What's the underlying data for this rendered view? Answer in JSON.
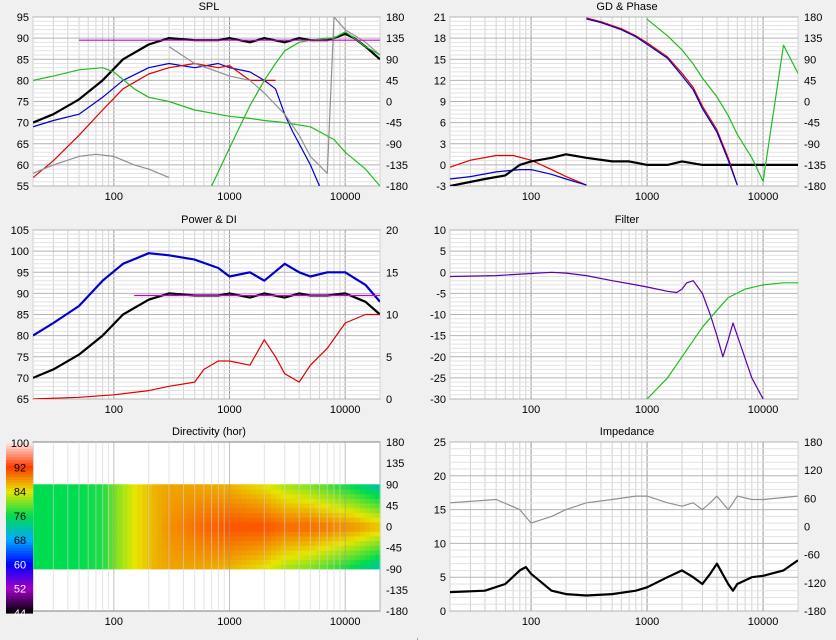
{
  "window_title": "",
  "colors": {
    "background": "#f0f0f0",
    "plot_bg": "#ffffff",
    "grid": "#c8c8c8",
    "grid_major": "#9a9a9a",
    "black": "#000000",
    "blue": "#0000cc",
    "red": "#e00000",
    "green": "#22bb22",
    "gray": "#909090",
    "magenta": "#cc00cc",
    "purple": "#5a00aa"
  },
  "panels": [
    {
      "id": "spl",
      "title": "SPL"
    },
    {
      "id": "gd",
      "title": "GD & Phase"
    },
    {
      "id": "power",
      "title": "Power & DI"
    },
    {
      "id": "filter",
      "title": "Filter"
    },
    {
      "id": "directivity",
      "title": "Directivity (hor)"
    },
    {
      "id": "impedance",
      "title": "Impedance"
    }
  ],
  "x_ticks": [
    "100",
    "1000",
    "10000"
  ],
  "chart_data": [
    {
      "id": "spl",
      "type": "line",
      "title": "SPL",
      "xscale": "log",
      "xlim": [
        20,
        20000
      ],
      "y_left_ticks": [
        "95",
        "90",
        "85",
        "80",
        "75",
        "70",
        "65",
        "60",
        "55"
      ],
      "ylim_left": [
        55,
        95
      ],
      "y_right_ticks": [
        "180",
        "135",
        "90",
        "45",
        "0",
        "-45",
        "-90",
        "-135",
        "-180"
      ],
      "ylim_right": [
        -180,
        180
      ],
      "series": [
        {
          "color": "black",
          "axis": "left",
          "x": [
            20,
            30,
            50,
            80,
            120,
            200,
            300,
            500,
            800,
            1000,
            1500,
            2000,
            3000,
            4000,
            5000,
            7000,
            8000,
            10000,
            12000,
            15000,
            20000
          ],
          "y": [
            70,
            72,
            75.5,
            80,
            85,
            88.5,
            90,
            89.5,
            89.5,
            90,
            89,
            90,
            89,
            90,
            89.5,
            89.5,
            90,
            91,
            90,
            88,
            85
          ]
        },
        {
          "color": "blue",
          "axis": "left",
          "x": [
            20,
            30,
            50,
            80,
            120,
            200,
            300,
            500,
            800,
            1000,
            1500,
            2000,
            2500,
            3000,
            3500,
            4000,
            5000,
            6000
          ],
          "y": [
            69,
            70.5,
            72,
            76,
            80,
            83,
            84,
            83,
            84,
            83,
            82,
            80,
            78,
            72,
            68,
            65,
            60,
            55
          ]
        },
        {
          "color": "red",
          "axis": "left",
          "x": [
            20,
            30,
            50,
            80,
            120,
            200,
            300,
            500,
            800,
            1000,
            1500,
            2000,
            2500
          ],
          "y": [
            57,
            61,
            67,
            73,
            78,
            81.5,
            83,
            84,
            83,
            83.5,
            80,
            80,
            80
          ]
        },
        {
          "color": "green",
          "axis": "left",
          "x": [
            20,
            30,
            50,
            80,
            100,
            150,
            200,
            300,
            500,
            1000,
            1500,
            2000,
            3000,
            5000,
            8000,
            10000,
            15000,
            20000
          ],
          "y": [
            80,
            81,
            82.5,
            83,
            82,
            78,
            76,
            75,
            73,
            71.5,
            71,
            70.5,
            70,
            69,
            66,
            63,
            59,
            55
          ]
        },
        {
          "color": "gray",
          "axis": "left",
          "x": [
            20,
            30,
            50,
            70,
            100,
            150,
            200,
            300
          ],
          "y": [
            58,
            60,
            62,
            62.5,
            62,
            60,
            59,
            57
          ]
        },
        {
          "color": "gray",
          "axis": "left",
          "x": [
            300,
            500,
            800,
            1000,
            1500,
            2000,
            3000,
            4000,
            5000,
            7000,
            8000,
            10000,
            15000,
            20000
          ],
          "y": [
            88,
            84,
            82,
            81,
            80,
            77,
            72,
            67,
            62,
            58,
            95,
            92,
            89,
            86
          ]
        },
        {
          "color": "green",
          "axis": "left",
          "x": [
            700,
            1000,
            1500,
            2000,
            2500,
            3000,
            4000,
            5000,
            7000,
            8000,
            10000,
            12000,
            15000,
            20000
          ],
          "y": [
            55,
            64,
            74,
            80,
            84,
            87,
            89,
            89.5,
            90,
            90,
            91.5,
            90,
            88,
            86
          ]
        },
        {
          "color": "magenta",
          "axis": "left",
          "x": [
            50,
            20000
          ],
          "y": [
            89.5,
            89.5
          ]
        }
      ]
    },
    {
      "id": "gd",
      "type": "line",
      "title": "GD & Phase",
      "xscale": "log",
      "xlim": [
        20,
        20000
      ],
      "y_left_ticks": [
        "21",
        "18",
        "15",
        "12",
        "9",
        "6",
        "3",
        "0",
        "-3"
      ],
      "ylim_left": [
        -3,
        21
      ],
      "y_right_ticks": [
        "180",
        "135",
        "90",
        "45",
        "0",
        "-45",
        "-90",
        "-135",
        "-180"
      ],
      "ylim_right": [
        -180,
        180
      ],
      "series": [
        {
          "color": "red",
          "axis": "right",
          "x": [
            20,
            30,
            50,
            70,
            100,
            150,
            200,
            300
          ],
          "y": [
            -140,
            -125,
            -115,
            -115,
            -125,
            -145,
            -160,
            -178
          ]
        },
        {
          "color": "blue",
          "axis": "right",
          "x": [
            20,
            30,
            50,
            80,
            100,
            150,
            200,
            300
          ],
          "y": [
            -165,
            -160,
            -150,
            -145,
            -145,
            -155,
            -165,
            -178
          ]
        },
        {
          "color": "black",
          "axis": "left",
          "x": [
            20,
            40,
            60,
            80,
            100,
            150,
            200,
            300,
            500,
            700,
            1000,
            1500,
            2000,
            3000,
            5000,
            10000,
            20000
          ],
          "y": [
            -3,
            -2,
            -1.5,
            0,
            0.5,
            1,
            1.5,
            1,
            0.5,
            0.5,
            0,
            0,
            0.5,
            0,
            0,
            0,
            0
          ]
        },
        {
          "color": "red",
          "axis": "right",
          "x": [
            300,
            400,
            600,
            800,
            1000,
            1500,
            2000,
            2500,
            3000,
            4000,
            5000,
            6000
          ],
          "y": [
            178,
            170,
            155,
            140,
            125,
            95,
            60,
            30,
            -10,
            -60,
            -120,
            -178
          ]
        },
        {
          "color": "blue",
          "axis": "right",
          "x": [
            300,
            400,
            600,
            800,
            1000,
            1500,
            2000,
            2500,
            3000,
            4000,
            5000,
            6000
          ],
          "y": [
            176,
            168,
            153,
            138,
            122,
            92,
            55,
            25,
            -15,
            -65,
            -125,
            -178
          ]
        },
        {
          "color": "green",
          "axis": "right",
          "x": [
            1000,
            1500,
            2000,
            2500,
            3000,
            4000,
            5000,
            6000,
            8000,
            10000,
            15000,
            20000
          ],
          "y": [
            175,
            140,
            110,
            80,
            50,
            10,
            -30,
            -70,
            -120,
            -170,
            120,
            60
          ]
        }
      ]
    },
    {
      "id": "power",
      "type": "line",
      "title": "Power & DI",
      "xscale": "log",
      "xlim": [
        20,
        20000
      ],
      "y_left_ticks": [
        "105",
        "100",
        "95",
        "90",
        "85",
        "80",
        "75",
        "70",
        "65"
      ],
      "ylim_left": [
        65,
        105
      ],
      "y_right_ticks": [
        "20",
        "15",
        "10",
        "5",
        "0"
      ],
      "ylim_right": [
        0,
        20
      ],
      "series": [
        {
          "color": "blue",
          "axis": "left",
          "x": [
            20,
            30,
            50,
            80,
            120,
            200,
            300,
            500,
            800,
            1000,
            1500,
            2000,
            3000,
            4000,
            5000,
            7000,
            10000,
            15000,
            20000
          ],
          "y": [
            80,
            83,
            87,
            93,
            97,
            99.5,
            99,
            98,
            96,
            94,
            95,
            93,
            97,
            95,
            94,
            95,
            95,
            92,
            88
          ]
        },
        {
          "color": "black",
          "axis": "left",
          "x": [
            20,
            30,
            50,
            80,
            120,
            200,
            300,
            500,
            800,
            1000,
            1500,
            2000,
            3000,
            4000,
            5000,
            7000,
            10000,
            15000,
            20000
          ],
          "y": [
            70,
            72,
            75.5,
            80,
            85,
            88.5,
            90,
            89.5,
            89.5,
            90,
            89,
            90,
            89,
            90,
            89.5,
            89.5,
            90,
            88,
            85
          ]
        },
        {
          "color": "red",
          "axis": "right",
          "x": [
            20,
            50,
            100,
            200,
            300,
            500,
            600,
            800,
            1000,
            1500,
            2000,
            2500,
            3000,
            4000,
            5000,
            7000,
            10000,
            15000,
            20000
          ],
          "y": [
            0,
            0.2,
            0.5,
            1,
            1.5,
            2,
            3.5,
            4.5,
            4.5,
            4,
            7,
            5,
            3,
            2,
            4,
            6,
            9,
            10,
            10
          ]
        },
        {
          "color": "magenta",
          "axis": "left",
          "x": [
            150,
            20000
          ],
          "y": [
            89.5,
            89.5
          ]
        }
      ]
    },
    {
      "id": "filter",
      "type": "line",
      "title": "Filter",
      "xscale": "log",
      "xlim": [
        20,
        20000
      ],
      "y_left_ticks": [
        "10",
        "5",
        "0",
        "-5",
        "-10",
        "-15",
        "-20",
        "-25",
        "-30"
      ],
      "ylim_left": [
        -30,
        10
      ],
      "series": [
        {
          "color": "purple",
          "axis": "left",
          "x": [
            20,
            50,
            100,
            150,
            200,
            300,
            500,
            800,
            1000,
            1500,
            1800,
            2000,
            2200,
            2500,
            3000,
            3500,
            4000,
            4500,
            5000,
            5500,
            6000,
            8000,
            10000
          ],
          "y": [
            -1,
            -0.8,
            -0.3,
            0,
            -0.2,
            -0.8,
            -2,
            -3,
            -3.5,
            -4.5,
            -4.8,
            -4,
            -2.5,
            -2,
            -5,
            -10,
            -15,
            -20,
            -16,
            -12,
            -15,
            -25,
            -30
          ]
        },
        {
          "color": "green",
          "axis": "left",
          "x": [
            1000,
            1500,
            2000,
            3000,
            4000,
            5000,
            7000,
            10000,
            15000,
            20000
          ],
          "y": [
            -30,
            -25,
            -20,
            -13,
            -9,
            -6,
            -4,
            -3,
            -2.5,
            -2.5
          ]
        }
      ]
    },
    {
      "id": "directivity",
      "type": "heatmap",
      "title": "Directivity (hor)",
      "xscale": "log",
      "xlim": [
        20,
        20000
      ],
      "y_right_ticks": [
        "180",
        "135",
        "90",
        "45",
        "0",
        "-45",
        "-90",
        "-135",
        "-180"
      ],
      "ylim": [
        -180,
        180
      ],
      "colorbar_ticks": [
        "100",
        "92",
        "84",
        "76",
        "68",
        "60",
        "52",
        "44"
      ],
      "angle_range_shown": [
        -90,
        90
      ],
      "levels_by_frequency": {
        "x": [
          20,
          50,
          80,
          100,
          150,
          300,
          600,
          1000,
          2000,
          3000,
          5000,
          8000,
          12000,
          20000
        ],
        "level": [
          76,
          76,
          77,
          80,
          84,
          88,
          90,
          91,
          91,
          90,
          90,
          89,
          88,
          86
        ]
      }
    },
    {
      "id": "impedance",
      "type": "line",
      "title": "Impedance",
      "xscale": "log",
      "xlim": [
        20,
        20000
      ],
      "y_left_ticks": [
        "25",
        "20",
        "15",
        "10",
        "5",
        "0"
      ],
      "ylim_left": [
        0,
        25
      ],
      "y_right_ticks": [
        "180",
        "120",
        "60",
        "0",
        "-60",
        "-120",
        "-180"
      ],
      "ylim_right": [
        -180,
        180
      ],
      "series": [
        {
          "color": "gray",
          "axis": "left",
          "x": [
            20,
            50,
            80,
            100,
            150,
            200,
            300,
            500,
            800,
            1000,
            1500,
            2000,
            2500,
            3000,
            3500,
            4000,
            5000,
            5500,
            6000,
            8000,
            10000,
            20000
          ],
          "y": [
            16,
            16.5,
            15,
            13,
            14,
            15,
            16,
            16.5,
            17,
            17,
            16,
            15.5,
            16,
            15,
            16,
            17,
            15,
            16,
            17,
            16.5,
            16.5,
            17
          ]
        },
        {
          "color": "black",
          "axis": "left",
          "x": [
            20,
            40,
            60,
            80,
            90,
            100,
            150,
            200,
            300,
            500,
            800,
            1000,
            1500,
            2000,
            2500,
            3000,
            3500,
            4000,
            5000,
            5500,
            6000,
            8000,
            10000,
            15000,
            20000
          ],
          "y": [
            2.8,
            3,
            4,
            6,
            6.5,
            5.5,
            3,
            2.5,
            2.3,
            2.5,
            3,
            3.5,
            5,
            6,
            5,
            4,
            5.5,
            7,
            4,
            3,
            4,
            5,
            5.2,
            6,
            7.5
          ]
        }
      ]
    }
  ]
}
